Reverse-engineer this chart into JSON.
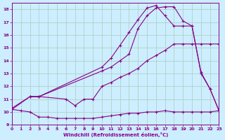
{
  "title": "",
  "xlabel": "Windchill (Refroidissement éolien,°C)",
  "ylabel": "",
  "background_color": "#cceeff",
  "grid_color": "#aaccbb",
  "line_color": "#880088",
  "xlim": [
    0,
    23
  ],
  "ylim": [
    9,
    18.5
  ],
  "yticks": [
    9,
    10,
    11,
    12,
    13,
    14,
    15,
    16,
    17,
    18
  ],
  "xticks": [
    0,
    1,
    2,
    3,
    4,
    5,
    6,
    7,
    8,
    9,
    10,
    11,
    12,
    13,
    14,
    15,
    16,
    17,
    18,
    19,
    20,
    21,
    22,
    23
  ],
  "series1_x": [
    0,
    1,
    2,
    3,
    4,
    5,
    6,
    7,
    8,
    9,
    10,
    11,
    12,
    13,
    14,
    15,
    16,
    17,
    18,
    19,
    20,
    21,
    22,
    23
  ],
  "series1_y": [
    10.2,
    10.1,
    10.0,
    9.6,
    9.6,
    9.5,
    9.5,
    9.5,
    9.5,
    9.5,
    9.6,
    9.7,
    9.8,
    9.9,
    9.9,
    10.0,
    10.0,
    10.1,
    10.0,
    10.0,
    10.0,
    10.0,
    10.0,
    10.1
  ],
  "series2_x": [
    0,
    2,
    3,
    6,
    7,
    8,
    9,
    10,
    11,
    12,
    13,
    14,
    15,
    16,
    17,
    18,
    19,
    20,
    21,
    22,
    23
  ],
  "series2_y": [
    10.2,
    11.2,
    11.2,
    11.0,
    10.5,
    11.0,
    11.0,
    12.0,
    12.3,
    12.7,
    13.0,
    13.4,
    14.0,
    14.4,
    14.8,
    15.3,
    15.3,
    15.3,
    15.3,
    15.3,
    15.3
  ],
  "series3_x": [
    0,
    2,
    3,
    10,
    11,
    12,
    13,
    14,
    15,
    16,
    17,
    18,
    19,
    20,
    21,
    22,
    23
  ],
  "series3_y": [
    10.3,
    11.2,
    11.2,
    13.2,
    13.5,
    14.0,
    14.5,
    16.5,
    17.5,
    18.1,
    18.2,
    18.2,
    17.1,
    16.7,
    13.0,
    11.8,
    10.1
  ],
  "series4_x": [
    2,
    3,
    10,
    11,
    12,
    13,
    14,
    15,
    16,
    17,
    18,
    19,
    20,
    21,
    22,
    23
  ],
  "series4_y": [
    11.2,
    11.2,
    13.5,
    14.2,
    15.2,
    16.2,
    17.2,
    18.1,
    18.3,
    17.5,
    16.7,
    16.7,
    16.7,
    13.1,
    11.8,
    10.1
  ]
}
